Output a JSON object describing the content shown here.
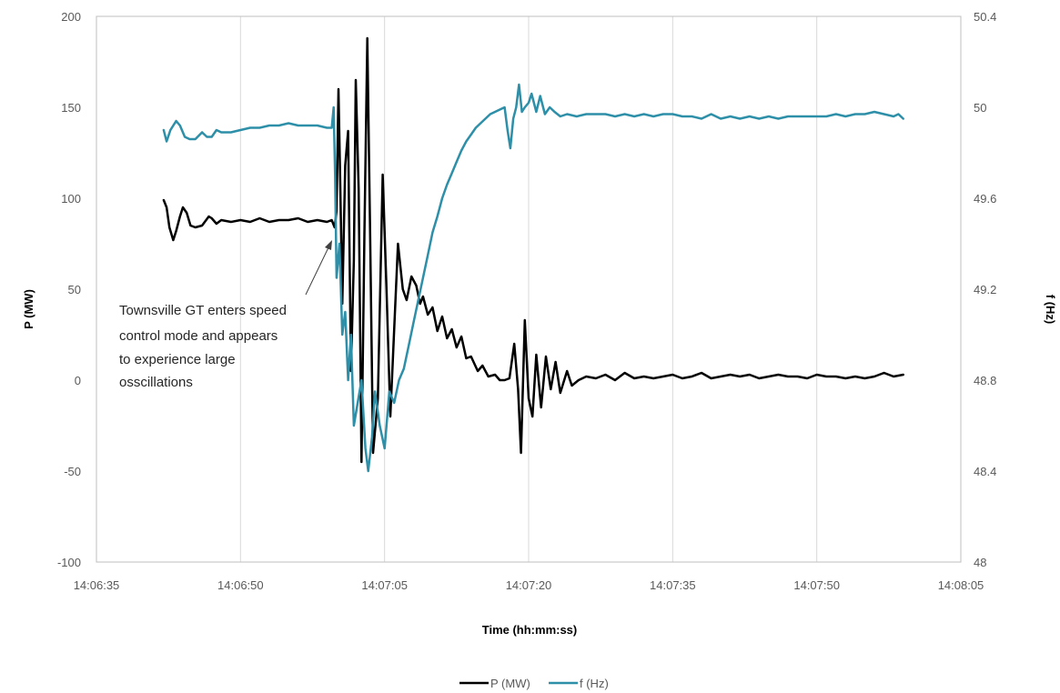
{
  "chart_data": {
    "type": "line",
    "title": "",
    "xlabel": "Time (hh:mm:ss)",
    "ylabel_left": "P (MW)",
    "ylabel_right": "f (Hz)",
    "x_ticks": [
      "14:06:35",
      "14:06:50",
      "14:07:05",
      "14:07:20",
      "14:07:35",
      "14:07:50",
      "14:08:05"
    ],
    "y_left_ticks": [
      "200",
      "150",
      "100",
      "50",
      "0",
      "-50",
      "-100"
    ],
    "y_right_ticks": [
      "50.4",
      "50",
      "49.6",
      "49.2",
      "48.8",
      "48.4",
      "48"
    ],
    "ylim_left": [
      -100,
      200
    ],
    "ylim_right": [
      48,
      50.4
    ],
    "grid": "vertical",
    "legend": "bottom-center",
    "annotation": [
      "Townsville GT enters speed",
      "control mode and appears",
      "to experience large",
      "osscillations"
    ],
    "series": [
      {
        "name": "P (MW)",
        "axis": "left",
        "color": "#000000",
        "points": [
          [
            "14:06:42.0",
            99
          ],
          [
            "14:06:42.3",
            95
          ],
          [
            "14:06:42.6",
            84
          ],
          [
            "14:06:43.0",
            77
          ],
          [
            "14:06:43.3",
            82
          ],
          [
            "14:06:43.7",
            90
          ],
          [
            "14:06:44.0",
            95
          ],
          [
            "14:06:44.4",
            92
          ],
          [
            "14:06:44.8",
            85
          ],
          [
            "14:06:45.3",
            84
          ],
          [
            "14:06:46.0",
            85
          ],
          [
            "14:06:46.7",
            90
          ],
          [
            "14:06:47.0",
            89
          ],
          [
            "14:06:47.5",
            86
          ],
          [
            "14:06:48.0",
            88
          ],
          [
            "14:06:49.0",
            87
          ],
          [
            "14:06:50.0",
            88
          ],
          [
            "14:06:51.0",
            87
          ],
          [
            "14:06:52.0",
            89
          ],
          [
            "14:06:53.0",
            87
          ],
          [
            "14:06:54.0",
            88
          ],
          [
            "14:06:55.0",
            88
          ],
          [
            "14:06:56.0",
            89
          ],
          [
            "14:06:57.0",
            87
          ],
          [
            "14:06:58.0",
            88
          ],
          [
            "14:06:59.0",
            87
          ],
          [
            "14:06:59.5",
            88
          ],
          [
            "14:06:59.8",
            84
          ],
          [
            "14:07:00.0",
            93
          ],
          [
            "14:07:00.2",
            160
          ],
          [
            "14:07:00.4",
            104
          ],
          [
            "14:07:00.6",
            42
          ],
          [
            "14:07:00.9",
            118
          ],
          [
            "14:07:01.2",
            137
          ],
          [
            "14:07:01.5",
            5
          ],
          [
            "14:07:01.8",
            66
          ],
          [
            "14:07:02.0",
            165
          ],
          [
            "14:07:02.3",
            105
          ],
          [
            "14:07:02.6",
            -45
          ],
          [
            "14:07:02.9",
            80
          ],
          [
            "14:07:03.2",
            188
          ],
          [
            "14:07:03.5",
            80
          ],
          [
            "14:07:03.8",
            -40
          ],
          [
            "14:07:04.3",
            -10
          ],
          [
            "14:07:04.8",
            113
          ],
          [
            "14:07:05.2",
            50
          ],
          [
            "14:07:05.6",
            -20
          ],
          [
            "14:07:06.1",
            40
          ],
          [
            "14:07:06.4",
            75
          ],
          [
            "14:07:06.9",
            50
          ],
          [
            "14:07:07.3",
            44
          ],
          [
            "14:07:07.8",
            57
          ],
          [
            "14:07:08.3",
            52
          ],
          [
            "14:07:08.7",
            42
          ],
          [
            "14:07:09.0",
            46
          ],
          [
            "14:07:09.5",
            36
          ],
          [
            "14:07:10.0",
            40
          ],
          [
            "14:07:10.5",
            27
          ],
          [
            "14:07:11.0",
            35
          ],
          [
            "14:07:11.5",
            23
          ],
          [
            "14:07:12.0",
            28
          ],
          [
            "14:07:12.5",
            18
          ],
          [
            "14:07:13.0",
            24
          ],
          [
            "14:07:13.5",
            12
          ],
          [
            "14:07:14.0",
            13
          ],
          [
            "14:07:14.7",
            5
          ],
          [
            "14:07:15.2",
            8
          ],
          [
            "14:07:15.8",
            2
          ],
          [
            "14:07:16.5",
            3
          ],
          [
            "14:07:17.0",
            0
          ],
          [
            "14:07:17.5",
            0
          ],
          [
            "14:07:18.0",
            1
          ],
          [
            "14:07:18.5",
            20
          ],
          [
            "14:07:18.9",
            -5
          ],
          [
            "14:07:19.2",
            -40
          ],
          [
            "14:07:19.6",
            33
          ],
          [
            "14:07:20.0",
            -10
          ],
          [
            "14:07:20.4",
            -20
          ],
          [
            "14:07:20.8",
            14
          ],
          [
            "14:07:21.3",
            -15
          ],
          [
            "14:07:21.8",
            13
          ],
          [
            "14:07:22.3",
            -5
          ],
          [
            "14:07:22.8",
            10
          ],
          [
            "14:07:23.3",
            -7
          ],
          [
            "14:07:24.0",
            5
          ],
          [
            "14:07:24.5",
            -3
          ],
          [
            "14:07:25.2",
            0
          ],
          [
            "14:07:26.0",
            2
          ],
          [
            "14:07:27.0",
            1
          ],
          [
            "14:07:28.0",
            3
          ],
          [
            "14:07:29.0",
            0
          ],
          [
            "14:07:30.0",
            4
          ],
          [
            "14:07:31.0",
            1
          ],
          [
            "14:07:32.0",
            2
          ],
          [
            "14:07:33.0",
            1
          ],
          [
            "14:07:34.0",
            2
          ],
          [
            "14:07:35.0",
            3
          ],
          [
            "14:07:36.0",
            1
          ],
          [
            "14:07:37.0",
            2
          ],
          [
            "14:07:38.0",
            4
          ],
          [
            "14:07:39.0",
            1
          ],
          [
            "14:07:40.0",
            2
          ],
          [
            "14:07:41.0",
            3
          ],
          [
            "14:07:42.0",
            2
          ],
          [
            "14:07:43.0",
            3
          ],
          [
            "14:07:44.0",
            1
          ],
          [
            "14:07:45.0",
            2
          ],
          [
            "14:07:46.0",
            3
          ],
          [
            "14:07:47.0",
            2
          ],
          [
            "14:07:48.0",
            2
          ],
          [
            "14:07:49.0",
            1
          ],
          [
            "14:07:50.0",
            3
          ],
          [
            "14:07:51.0",
            2
          ],
          [
            "14:07:52.0",
            2
          ],
          [
            "14:07:53.0",
            1
          ],
          [
            "14:07:54.0",
            2
          ],
          [
            "14:07:55.0",
            1
          ],
          [
            "14:07:56.0",
            2
          ],
          [
            "14:07:57.0",
            4
          ],
          [
            "14:07:58.0",
            2
          ],
          [
            "14:07:59.0",
            3
          ]
        ]
      },
      {
        "name": "f (Hz)",
        "axis": "right",
        "color": "#2e8fa8",
        "points": [
          [
            "14:06:42.0",
            49.9
          ],
          [
            "14:06:42.3",
            49.85
          ],
          [
            "14:06:42.7",
            49.9
          ],
          [
            "14:06:43.3",
            49.94
          ],
          [
            "14:06:43.7",
            49.92
          ],
          [
            "14:06:44.2",
            49.87
          ],
          [
            "14:06:44.7",
            49.86
          ],
          [
            "14:06:45.3",
            49.86
          ],
          [
            "14:06:46.0",
            49.89
          ],
          [
            "14:06:46.5",
            49.87
          ],
          [
            "14:06:47.0",
            49.87
          ],
          [
            "14:06:47.5",
            49.9
          ],
          [
            "14:06:48.0",
            49.89
          ],
          [
            "14:06:49.0",
            49.89
          ],
          [
            "14:06:50.0",
            49.9
          ],
          [
            "14:06:51.0",
            49.91
          ],
          [
            "14:06:52.0",
            49.91
          ],
          [
            "14:06:53.0",
            49.92
          ],
          [
            "14:06:54.0",
            49.92
          ],
          [
            "14:06:55.0",
            49.93
          ],
          [
            "14:06:56.0",
            49.92
          ],
          [
            "14:06:57.0",
            49.92
          ],
          [
            "14:06:58.0",
            49.92
          ],
          [
            "14:06:59.0",
            49.91
          ],
          [
            "14:06:59.5",
            49.91
          ],
          [
            "14:06:59.7",
            50.0
          ],
          [
            "14:06:59.85",
            49.7
          ],
          [
            "14:07:00.0",
            49.25
          ],
          [
            "14:07:00.3",
            49.4
          ],
          [
            "14:07:00.6",
            49.0
          ],
          [
            "14:07:00.9",
            49.1
          ],
          [
            "14:07:01.2",
            48.8
          ],
          [
            "14:07:01.5",
            49.0
          ],
          [
            "14:07:01.8",
            48.6
          ],
          [
            "14:07:02.2",
            48.7
          ],
          [
            "14:07:02.6",
            48.8
          ],
          [
            "14:07:03.0",
            48.5
          ],
          [
            "14:07:03.3",
            48.4
          ],
          [
            "14:07:03.7",
            48.55
          ],
          [
            "14:07:04.0",
            48.75
          ],
          [
            "14:07:04.5",
            48.6
          ],
          [
            "14:07:05.0",
            48.5
          ],
          [
            "14:07:05.5",
            48.75
          ],
          [
            "14:07:06.0",
            48.7
          ],
          [
            "14:07:06.5",
            48.8
          ],
          [
            "14:07:07.0",
            48.85
          ],
          [
            "14:07:07.5",
            48.95
          ],
          [
            "14:07:08.0",
            49.05
          ],
          [
            "14:07:08.5",
            49.15
          ],
          [
            "14:07:09.0",
            49.25
          ],
          [
            "14:07:09.5",
            49.35
          ],
          [
            "14:07:10.0",
            49.45
          ],
          [
            "14:07:10.5",
            49.52
          ],
          [
            "14:07:11.0",
            49.6
          ],
          [
            "14:07:11.5",
            49.66
          ],
          [
            "14:07:12.0",
            49.71
          ],
          [
            "14:07:12.5",
            49.76
          ],
          [
            "14:07:13.0",
            49.81
          ],
          [
            "14:07:13.5",
            49.85
          ],
          [
            "14:07:14.0",
            49.88
          ],
          [
            "14:07:14.5",
            49.91
          ],
          [
            "14:07:15.0",
            49.93
          ],
          [
            "14:07:15.5",
            49.95
          ],
          [
            "14:07:16.0",
            49.97
          ],
          [
            "14:07:16.5",
            49.98
          ],
          [
            "14:07:17.0",
            49.99
          ],
          [
            "14:07:17.5",
            50.0
          ],
          [
            "14:07:17.8",
            49.9
          ],
          [
            "14:07:18.1",
            49.82
          ],
          [
            "14:07:18.4",
            49.95
          ],
          [
            "14:07:18.7",
            50.0
          ],
          [
            "14:07:19.0",
            50.1
          ],
          [
            "14:07:19.3",
            49.98
          ],
          [
            "14:07:19.6",
            50.0
          ],
          [
            "14:07:20.0",
            50.02
          ],
          [
            "14:07:20.3",
            50.06
          ],
          [
            "14:07:20.8",
            49.98
          ],
          [
            "14:07:21.2",
            50.05
          ],
          [
            "14:07:21.7",
            49.97
          ],
          [
            "14:07:22.2",
            50.0
          ],
          [
            "14:07:22.7",
            49.98
          ],
          [
            "14:07:23.3",
            49.96
          ],
          [
            "14:07:24.0",
            49.97
          ],
          [
            "14:07:25.0",
            49.96
          ],
          [
            "14:07:26.0",
            49.97
          ],
          [
            "14:07:27.0",
            49.97
          ],
          [
            "14:07:28.0",
            49.97
          ],
          [
            "14:07:29.0",
            49.96
          ],
          [
            "14:07:30.0",
            49.97
          ],
          [
            "14:07:31.0",
            49.96
          ],
          [
            "14:07:32.0",
            49.97
          ],
          [
            "14:07:33.0",
            49.96
          ],
          [
            "14:07:34.0",
            49.97
          ],
          [
            "14:07:35.0",
            49.97
          ],
          [
            "14:07:36.0",
            49.96
          ],
          [
            "14:07:37.0",
            49.96
          ],
          [
            "14:07:38.0",
            49.95
          ],
          [
            "14:07:39.0",
            49.97
          ],
          [
            "14:07:40.0",
            49.95
          ],
          [
            "14:07:41.0",
            49.96
          ],
          [
            "14:07:42.0",
            49.95
          ],
          [
            "14:07:43.0",
            49.96
          ],
          [
            "14:07:44.0",
            49.95
          ],
          [
            "14:07:45.0",
            49.96
          ],
          [
            "14:07:46.0",
            49.95
          ],
          [
            "14:07:47.0",
            49.96
          ],
          [
            "14:07:48.0",
            49.96
          ],
          [
            "14:07:49.0",
            49.96
          ],
          [
            "14:07:50.0",
            49.96
          ],
          [
            "14:07:51.0",
            49.96
          ],
          [
            "14:07:52.0",
            49.97
          ],
          [
            "14:07:53.0",
            49.96
          ],
          [
            "14:07:54.0",
            49.97
          ],
          [
            "14:07:55.0",
            49.97
          ],
          [
            "14:07:56.0",
            49.98
          ],
          [
            "14:07:57.0",
            49.97
          ],
          [
            "14:07:58.0",
            49.96
          ],
          [
            "14:07:58.5",
            49.97
          ],
          [
            "14:07:59.0",
            49.95
          ]
        ]
      }
    ]
  }
}
